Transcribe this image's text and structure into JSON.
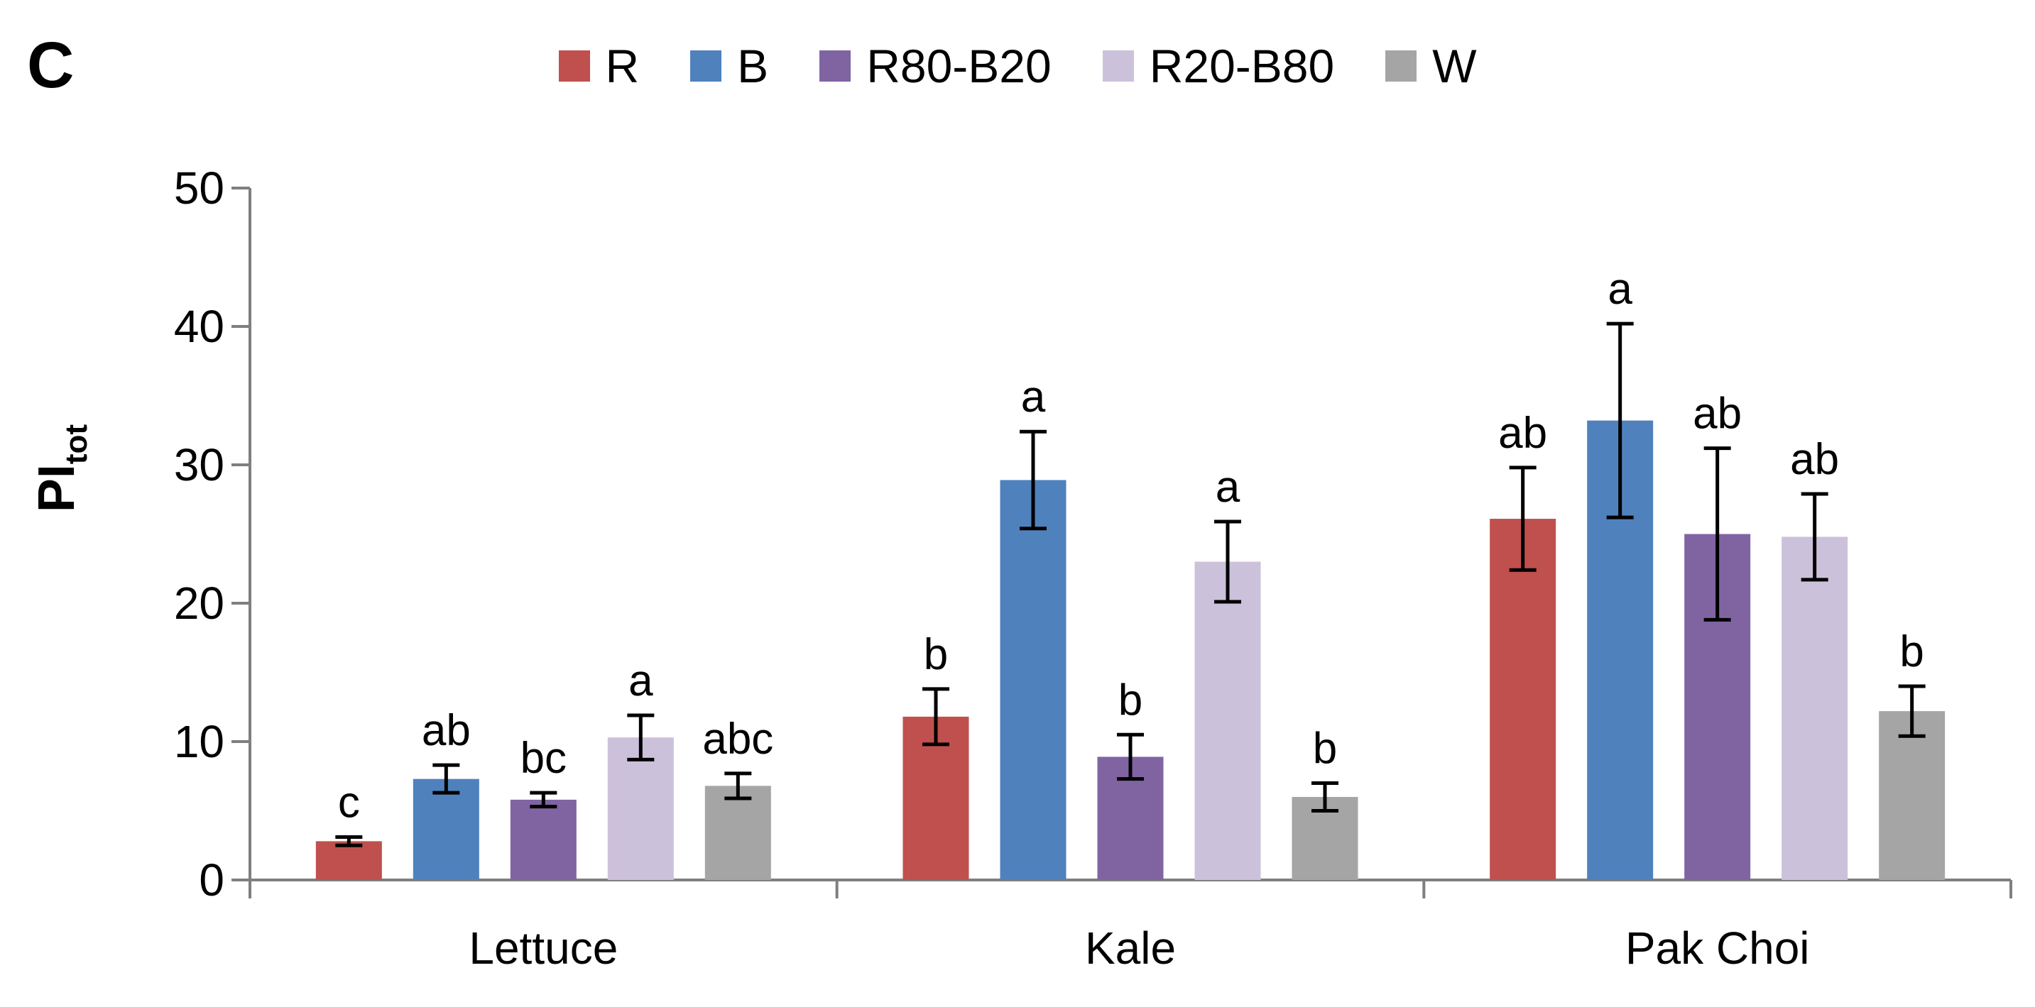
{
  "panel_label": "C",
  "chart_data": {
    "type": "bar",
    "title": "",
    "xlabel": "",
    "ylabel": "PI",
    "ylabel_subscript": "tot",
    "ylim": [
      0,
      50
    ],
    "yticks": [
      0,
      10,
      20,
      30,
      40,
      50
    ],
    "grid": false,
    "legend_position": "top-center",
    "categories": [
      "Lettuce",
      "Kale",
      "Pak Choi"
    ],
    "series": [
      {
        "name": "R",
        "color": "#c0504d",
        "values": [
          2.8,
          11.8,
          26.1
        ],
        "errors": [
          0.3,
          2.0,
          3.7
        ],
        "letters": [
          "c",
          "b",
          "ab"
        ]
      },
      {
        "name": "B",
        "color": "#4f81bd",
        "values": [
          7.3,
          28.9,
          33.2
        ],
        "errors": [
          1.0,
          3.5,
          7.0
        ],
        "letters": [
          "ab",
          "a",
          "a"
        ]
      },
      {
        "name": "R80-B20",
        "color": "#8064a2",
        "values": [
          5.8,
          8.9,
          25.0
        ],
        "errors": [
          0.5,
          1.6,
          6.2
        ],
        "letters": [
          "bc",
          "b",
          "ab"
        ]
      },
      {
        "name": "R20-B80",
        "color": "#ccc1da",
        "values": [
          10.3,
          23.0,
          24.8
        ],
        "errors": [
          1.6,
          2.9,
          3.1
        ],
        "letters": [
          "a",
          "a",
          "ab"
        ]
      },
      {
        "name": "W",
        "color": "#a5a5a5",
        "values": [
          6.8,
          6.0,
          12.2
        ],
        "errors": [
          0.9,
          1.0,
          1.8
        ],
        "letters": [
          "abc",
          "b",
          "b"
        ]
      }
    ]
  }
}
